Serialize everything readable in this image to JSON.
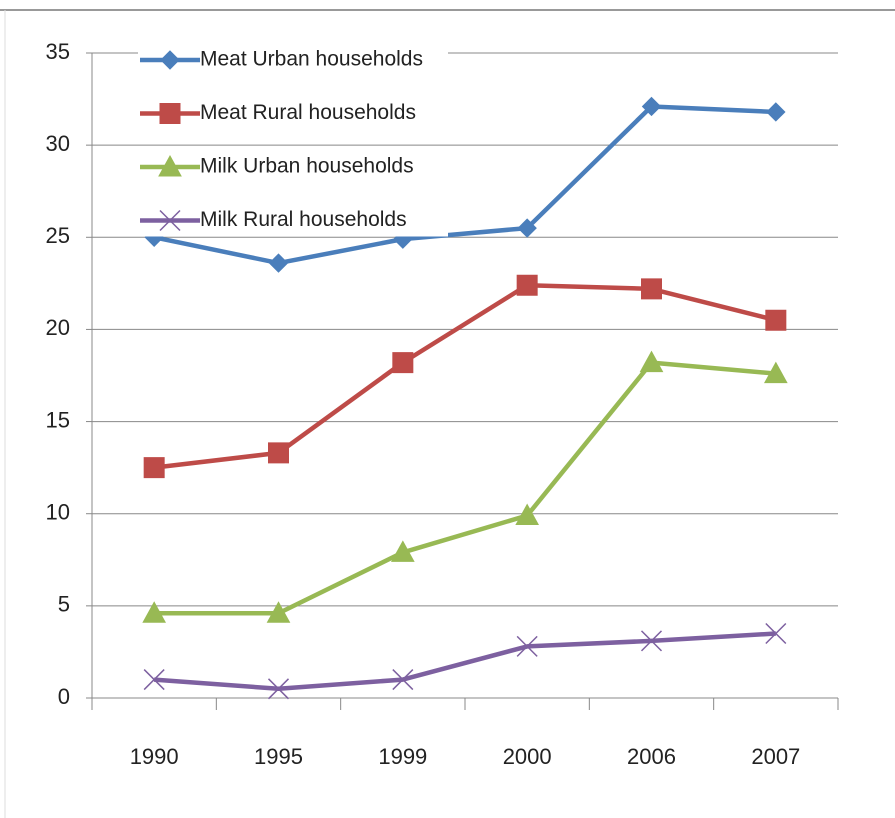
{
  "chart_data": {
    "type": "line",
    "categories": [
      "1990",
      "1995",
      "1999",
      "2000",
      "2006",
      "2007"
    ],
    "series": [
      {
        "name": "Meat Urban households",
        "color": "#4a7ebb",
        "marker": "diamond",
        "values": [
          25,
          23.6,
          24.9,
          25.5,
          32.1,
          31.8
        ]
      },
      {
        "name": "Meat Rural households",
        "color": "#be4b48",
        "marker": "square",
        "values": [
          12.5,
          13.3,
          18.2,
          22.4,
          22.2,
          20.5
        ]
      },
      {
        "name": "Milk Urban households",
        "color": "#98b954",
        "marker": "triangle",
        "values": [
          4.6,
          4.6,
          7.9,
          9.9,
          18.2,
          17.6
        ]
      },
      {
        "name": "Milk Rural households",
        "color": "#7d60a0",
        "marker": "x",
        "values": [
          1.0,
          0.5,
          1.0,
          2.8,
          3.1,
          3.5
        ]
      }
    ],
    "ylim": [
      0,
      35
    ],
    "yticks": [
      0,
      5,
      10,
      15,
      20,
      25,
      30,
      35
    ],
    "grid": true,
    "legend": "upper left"
  }
}
